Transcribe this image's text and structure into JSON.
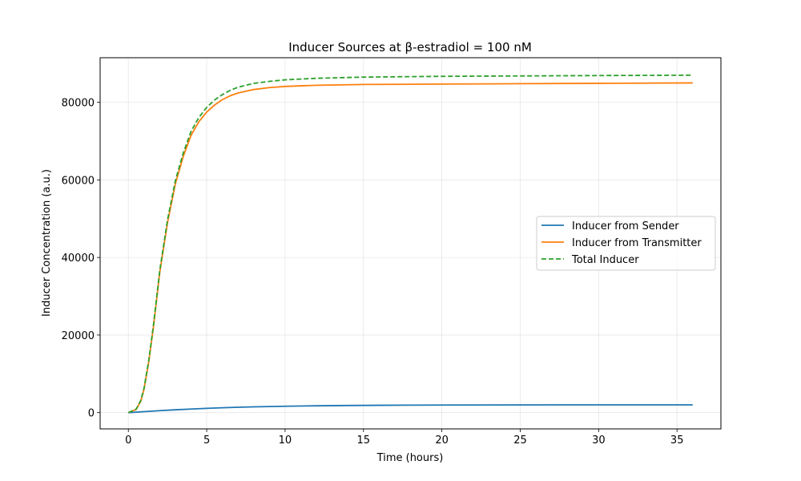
{
  "chart_data": {
    "type": "line",
    "title": "Inducer Sources at β-estradiol = 100 nM",
    "xlabel": "Time (hours)",
    "ylabel": "Inducer Concentration (a.u.)",
    "xlim": [
      -1.8,
      37.8
    ],
    "ylim": [
      -4200,
      91500
    ],
    "xticks": [
      0,
      5,
      10,
      15,
      20,
      25,
      30,
      35
    ],
    "yticks": [
      0,
      20000,
      40000,
      60000,
      80000
    ],
    "grid": true,
    "legend_position": "center-right",
    "series": [
      {
        "name": "Inducer from Sender",
        "color": "#1f77b4",
        "dash": "solid",
        "x": [
          0,
          1,
          2,
          3,
          4,
          5,
          6,
          7,
          8,
          10,
          12,
          14,
          16,
          18,
          20,
          24,
          28,
          32,
          36
        ],
        "y": [
          0,
          250,
          500,
          720,
          920,
          1100,
          1250,
          1380,
          1480,
          1640,
          1750,
          1830,
          1880,
          1920,
          1950,
          1980,
          1995,
          2000,
          2000
        ]
      },
      {
        "name": "Inducer from Transmitter",
        "color": "#ff7f0e",
        "dash": "solid",
        "x": [
          0,
          0.5,
          0.8,
          1.0,
          1.3,
          1.6,
          2.0,
          2.5,
          3.0,
          3.5,
          4.0,
          4.5,
          5.0,
          5.5,
          6.0,
          6.5,
          7.0,
          8.0,
          9.0,
          10.0,
          12.0,
          15.0,
          20.0,
          25.0,
          30.0,
          36.0
        ],
        "y": [
          0,
          800,
          3000,
          6000,
          13000,
          22000,
          36000,
          49000,
          59000,
          66000,
          71500,
          75000,
          77500,
          79300,
          80700,
          81700,
          82400,
          83300,
          83800,
          84100,
          84400,
          84600,
          84700,
          84800,
          84900,
          85000
        ]
      },
      {
        "name": "Total Inducer",
        "color": "#2ca02c",
        "dash": "dashed",
        "x": [
          0,
          0.5,
          0.8,
          1.0,
          1.3,
          1.6,
          2.0,
          2.5,
          3.0,
          3.5,
          4.0,
          4.5,
          5.0,
          5.5,
          6.0,
          6.5,
          7.0,
          8.0,
          9.0,
          10.0,
          12.0,
          15.0,
          20.0,
          25.0,
          30.0,
          36.0
        ],
        "y": [
          0,
          900,
          3200,
          6300,
          13400,
          22500,
          36500,
          49700,
          59800,
          66900,
          72500,
          76100,
          78700,
          80600,
          82000,
          83100,
          83900,
          84900,
          85400,
          85800,
          86200,
          86500,
          86700,
          86800,
          86900,
          87000
        ]
      }
    ]
  }
}
